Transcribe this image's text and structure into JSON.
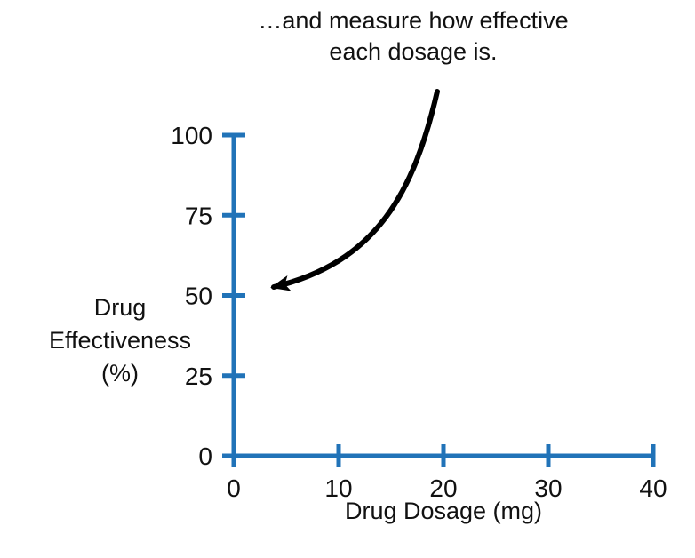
{
  "annotation": {
    "line1": "…and measure how effective",
    "line2": "each dosage is."
  },
  "chart_data": {
    "type": "line",
    "title": "",
    "xlabel": "Drug Dosage (mg)",
    "ylabel": "Drug Effectiveness (%)",
    "ylabel_lines": [
      "Drug",
      "Effectiveness",
      "(%)"
    ],
    "xticks": [
      0,
      10,
      20,
      30,
      40
    ],
    "yticks": [
      0,
      25,
      50,
      75,
      100
    ],
    "xlim": [
      0,
      40
    ],
    "ylim": [
      0,
      100
    ],
    "series": [],
    "grid": false,
    "legend": false,
    "axis_color": "#2173b8",
    "arrow_color": "#000000",
    "annotation_text": "…and measure how effective each dosage is.",
    "annotation_points_to": "y-axis tick at 50"
  }
}
